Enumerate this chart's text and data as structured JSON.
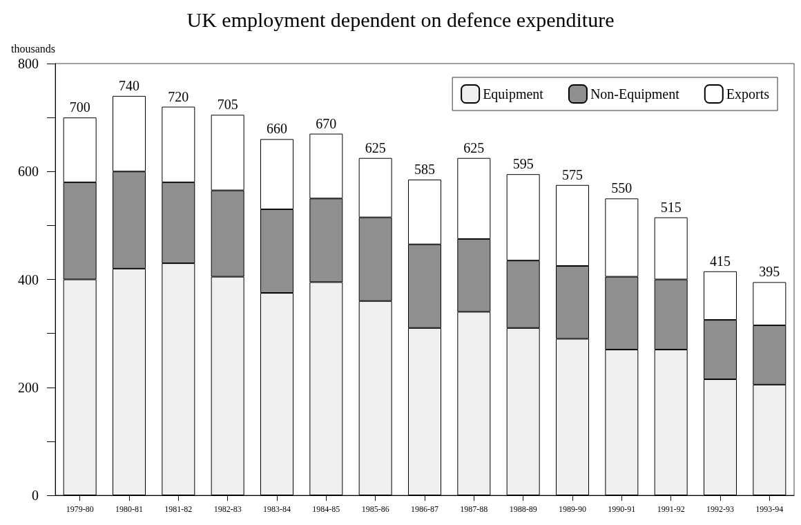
{
  "chart_data": {
    "type": "bar",
    "title": "UK employment dependent on defence expenditure",
    "ylabel": "thousands",
    "categories": [
      "1979-80",
      "1980-81",
      "1981-82",
      "1982-83",
      "1983-84",
      "1984-85",
      "1985-86",
      "1986-87",
      "1987-88",
      "1988-89",
      "1989-90",
      "1990-91",
      "1991-92",
      "1992-93",
      "1993-94"
    ],
    "stacked": true,
    "series": [
      {
        "name": "Equipment",
        "color": "#efefef",
        "values": [
          400,
          420,
          430,
          405,
          375,
          395,
          360,
          310,
          340,
          310,
          290,
          270,
          270,
          215,
          205
        ]
      },
      {
        "name": "Non-Equipment",
        "color": "#8f8f8f",
        "values": [
          180,
          180,
          150,
          160,
          155,
          155,
          155,
          155,
          135,
          125,
          135,
          135,
          130,
          110,
          110
        ]
      },
      {
        "name": "Exports",
        "color": "#ffffff",
        "values": [
          120,
          140,
          140,
          140,
          130,
          120,
          110,
          120,
          150,
          160,
          150,
          145,
          115,
          90,
          80
        ]
      }
    ],
    "totals": [
      "700",
      "740",
      "720",
      "705",
      "660",
      "670",
      "625",
      "585",
      "625",
      "595",
      "575",
      "550",
      "515",
      "415",
      "395"
    ],
    "ylim": [
      0,
      800
    ],
    "yticks": [
      0,
      {
        "value": 100,
        "label": null
      },
      200,
      {
        "value": 300,
        "label": null
      },
      400,
      {
        "value": 500,
        "label": null
      },
      600,
      {
        "value": 700,
        "label": null
      },
      800
    ],
    "grid": false,
    "legend": "top right"
  }
}
